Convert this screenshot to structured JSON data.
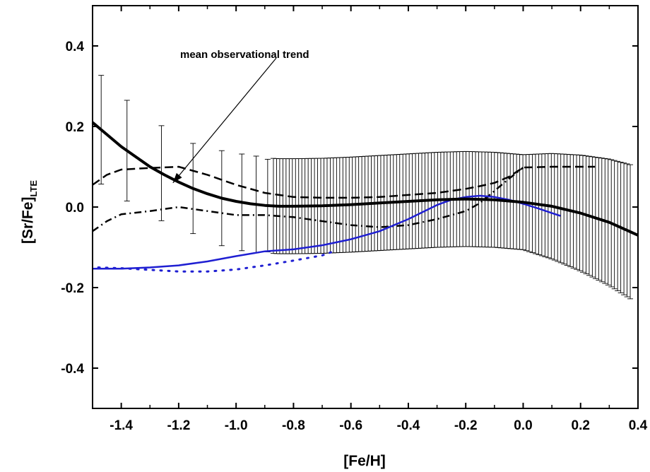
{
  "chart_data": {
    "type": "line",
    "xlabel": "[Fe/H]",
    "ylabel": "[Sr/Fe]",
    "ylabel_sub": "LTE",
    "xlim": [
      -1.5,
      0.4
    ],
    "ylim": [
      -0.5,
      0.5
    ],
    "xticks": [
      "-1.4",
      "-1.2",
      "-1.0",
      "-0.8",
      "-0.6",
      "-0.4",
      "-0.2",
      "0.0",
      "0.2",
      "0.4"
    ],
    "xtick_values": [
      -1.4,
      -1.2,
      -1.0,
      -0.8,
      -0.6,
      -0.4,
      -0.2,
      0.0,
      0.2,
      0.4
    ],
    "yticks": [
      "-0.4",
      "-0.2",
      "0.0",
      "0.2",
      "0.4"
    ],
    "ytick_values": [
      -0.4,
      -0.2,
      0.0,
      0.2,
      0.4
    ],
    "grid": false,
    "annotation": {
      "text": "mean observational trend",
      "arrow_from": [
        -0.86,
        0.37
      ],
      "arrow_to": [
        -1.22,
        0.06
      ]
    },
    "series": [
      {
        "style": "solid-thick",
        "color": "#000000",
        "x": [
          -1.5,
          -1.45,
          -1.4,
          -1.35,
          -1.3,
          -1.25,
          -1.2,
          -1.15,
          -1.1,
          -1.05,
          -1.0,
          -0.95,
          -0.9,
          -0.85,
          -0.8,
          -0.7,
          -0.6,
          -0.5,
          -0.4,
          -0.3,
          -0.2,
          -0.1,
          0.0,
          0.1,
          0.2,
          0.3,
          0.4
        ],
        "y": [
          0.21,
          0.18,
          0.15,
          0.125,
          0.1,
          0.08,
          0.062,
          0.046,
          0.033,
          0.022,
          0.014,
          0.008,
          0.004,
          0.002,
          0.002,
          0.003,
          0.006,
          0.01,
          0.014,
          0.018,
          0.02,
          0.018,
          0.012,
          0.002,
          -0.015,
          -0.038,
          -0.07
        ]
      },
      {
        "style": "dashed",
        "color": "#000000",
        "x": [
          -1.5,
          -1.45,
          -1.4,
          -1.3,
          -1.2,
          -1.1,
          -1.0,
          -0.9,
          -0.8,
          -0.7,
          -0.6,
          -0.5,
          -0.4,
          -0.3,
          -0.2,
          -0.15,
          -0.1,
          -0.05,
          0.0,
          0.1,
          0.2,
          0.25
        ],
        "y": [
          0.055,
          0.08,
          0.093,
          0.097,
          0.1,
          0.08,
          0.055,
          0.035,
          0.025,
          0.023,
          0.023,
          0.025,
          0.03,
          0.035,
          0.045,
          0.052,
          0.06,
          0.075,
          0.098,
          0.1,
          0.1,
          0.1
        ]
      },
      {
        "style": "dash-dot",
        "color": "#000000",
        "x": [
          -1.5,
          -1.45,
          -1.4,
          -1.3,
          -1.2,
          -1.1,
          -1.0,
          -0.9,
          -0.8,
          -0.7,
          -0.6,
          -0.5,
          -0.4,
          -0.3,
          -0.2,
          -0.15,
          -0.1,
          -0.05,
          0.0
        ],
        "y": [
          -0.06,
          -0.035,
          -0.018,
          -0.01,
          0.0,
          -0.01,
          -0.02,
          -0.02,
          -0.025,
          -0.035,
          -0.045,
          -0.05,
          -0.045,
          -0.03,
          -0.01,
          0.01,
          0.04,
          0.07,
          0.098
        ]
      },
      {
        "style": "solid",
        "color": "#1f1fd2",
        "x": [
          -1.5,
          -1.4,
          -1.3,
          -1.2,
          -1.1,
          -1.0,
          -0.9,
          -0.8,
          -0.7,
          -0.6,
          -0.5,
          -0.4,
          -0.3,
          -0.25,
          -0.2,
          -0.15,
          -0.1,
          -0.05,
          0.0,
          0.05,
          0.1,
          0.13
        ],
        "y": [
          -0.153,
          -0.153,
          -0.15,
          -0.145,
          -0.135,
          -0.122,
          -0.11,
          -0.105,
          -0.095,
          -0.08,
          -0.06,
          -0.03,
          0.005,
          0.018,
          0.025,
          0.028,
          0.025,
          0.018,
          0.008,
          -0.003,
          -0.015,
          -0.022
        ]
      },
      {
        "style": "dotted",
        "color": "#1f1fd2",
        "x": [
          -1.48,
          -1.4,
          -1.3,
          -1.2,
          -1.1,
          -1.0,
          -0.9,
          -0.8,
          -0.7,
          -0.66
        ],
        "y": [
          -0.15,
          -0.152,
          -0.156,
          -0.16,
          -0.16,
          -0.155,
          -0.145,
          -0.133,
          -0.12,
          -0.11
        ]
      }
    ],
    "error_band": {
      "color": "#000000",
      "x_start": -1.47,
      "x_end": 0.38,
      "sparse_x": [
        -1.47,
        -1.38,
        -1.26,
        -1.15,
        -1.05,
        -0.98,
        -0.93,
        -0.89
      ],
      "dense_step": 0.011
    }
  }
}
